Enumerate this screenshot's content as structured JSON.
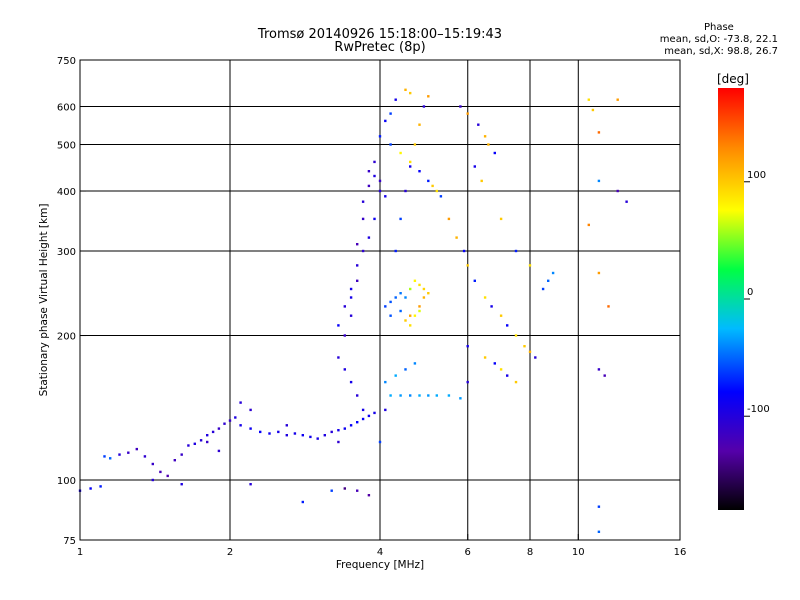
{
  "header": {
    "title_line1": "Tromsø 20140926 15:18:00–15:19:43",
    "title_line2": "RwPretec (8p)"
  },
  "phase_info": {
    "heading": "Phase",
    "line_o": "mean, sd,O: -73.8, 22.1",
    "line_x": "mean, sd,X:  98.8, 26.7"
  },
  "chart_data": {
    "type": "scatter",
    "xlabel": "Frequency [MHz]",
    "ylabel": "Stationary phase Virtual Height [km]",
    "xscale": "log",
    "yscale": "log",
    "xlim": [
      1,
      16
    ],
    "ylim": [
      75,
      750
    ],
    "x_ticks": [
      1,
      2,
      4,
      6,
      8,
      10,
      16
    ],
    "x_grid": [
      2,
      4,
      6,
      8,
      10
    ],
    "y_ticks": [
      75,
      100,
      200,
      300,
      400,
      500,
      600,
      750
    ],
    "y_grid": [
      100,
      200,
      300,
      400,
      500,
      600
    ],
    "grid": true,
    "colorbar": {
      "label": "[deg]",
      "range": [
        -180,
        180
      ],
      "ticks": [
        -100,
        0,
        100
      ],
      "colors": [
        "#000000",
        "#5500aa",
        "#0000ff",
        "#00bbff",
        "#00ff44",
        "#ffff00",
        "#ff8800",
        "#ff0000"
      ]
    },
    "series": [
      {
        "points": [
          [
            1.0,
            95,
            -90
          ],
          [
            1.05,
            96,
            -80
          ],
          [
            1.1,
            97,
            -70
          ],
          [
            1.12,
            112,
            -60
          ],
          [
            1.15,
            111,
            -50
          ],
          [
            1.2,
            113,
            -100
          ],
          [
            1.25,
            114,
            -110
          ],
          [
            1.3,
            116,
            -115
          ],
          [
            1.35,
            112,
            -105
          ],
          [
            1.4,
            108,
            -110
          ],
          [
            1.45,
            104,
            -120
          ],
          [
            1.5,
            102,
            -125
          ],
          [
            1.55,
            110,
            -115
          ],
          [
            1.6,
            113,
            -110
          ],
          [
            1.65,
            118,
            -100
          ],
          [
            1.7,
            119,
            -95
          ],
          [
            1.75,
            121,
            -100
          ],
          [
            1.8,
            124,
            -95
          ],
          [
            1.85,
            126,
            -100
          ],
          [
            1.9,
            128,
            -110
          ],
          [
            1.95,
            131,
            -105
          ],
          [
            2.0,
            133,
            -110
          ],
          [
            2.05,
            135,
            -95
          ],
          [
            2.1,
            130,
            -90
          ],
          [
            2.2,
            128,
            -85
          ],
          [
            2.3,
            126,
            -80
          ],
          [
            2.4,
            125,
            -85
          ],
          [
            2.5,
            126,
            -90
          ],
          [
            2.6,
            124,
            -95
          ],
          [
            2.7,
            125,
            -90
          ],
          [
            2.8,
            124,
            -85
          ],
          [
            2.9,
            123,
            -88
          ],
          [
            3.0,
            122,
            -92
          ],
          [
            3.1,
            124,
            -95
          ],
          [
            3.2,
            126,
            -100
          ],
          [
            3.3,
            127,
            -90
          ],
          [
            3.4,
            128,
            -85
          ],
          [
            3.5,
            130,
            -80
          ],
          [
            3.6,
            132,
            -78
          ],
          [
            3.7,
            134,
            -80
          ],
          [
            3.8,
            136,
            -85
          ],
          [
            3.9,
            138,
            -90
          ],
          [
            4.0,
            120,
            -60
          ],
          [
            4.1,
            140,
            -95
          ],
          [
            2.1,
            145,
            -100
          ],
          [
            2.2,
            140,
            -105
          ],
          [
            1.8,
            120,
            -110
          ],
          [
            1.9,
            115,
            -105
          ],
          [
            2.6,
            130,
            -100
          ],
          [
            3.3,
            120,
            -105
          ],
          [
            3.6,
            95,
            -120
          ],
          [
            3.8,
            93,
            -130
          ],
          [
            3.4,
            96,
            -140
          ],
          [
            2.2,
            98,
            -100
          ],
          [
            3.2,
            95,
            -60
          ],
          [
            2.8,
            90,
            -70
          ],
          [
            1.4,
            100,
            -100
          ],
          [
            1.6,
            98,
            -95
          ],
          [
            3.4,
            200,
            -110
          ],
          [
            3.5,
            220,
            -100
          ],
          [
            3.5,
            250,
            -90
          ],
          [
            3.6,
            280,
            -100
          ],
          [
            3.6,
            310,
            -120
          ],
          [
            3.7,
            350,
            -110
          ],
          [
            3.7,
            380,
            -100
          ],
          [
            3.8,
            410,
            -115
          ],
          [
            3.8,
            440,
            -110
          ],
          [
            3.9,
            460,
            -105
          ],
          [
            3.9,
            430,
            -95
          ],
          [
            4.0,
            420,
            -110
          ],
          [
            4.0,
            400,
            -100
          ],
          [
            4.1,
            390,
            -90
          ],
          [
            3.9,
            350,
            -85
          ],
          [
            3.8,
            320,
            -95
          ],
          [
            3.7,
            300,
            -105
          ],
          [
            3.6,
            260,
            -115
          ],
          [
            3.5,
            240,
            -90
          ],
          [
            3.4,
            230,
            -100
          ],
          [
            3.3,
            210,
            -80
          ],
          [
            3.3,
            180,
            -100
          ],
          [
            3.4,
            170,
            -95
          ],
          [
            3.5,
            160,
            -90
          ],
          [
            3.6,
            150,
            -100
          ],
          [
            3.7,
            140,
            -90
          ],
          [
            4.1,
            230,
            -60
          ],
          [
            4.2,
            235,
            -55
          ],
          [
            4.3,
            240,
            -50
          ],
          [
            4.4,
            245,
            -45
          ],
          [
            4.5,
            240,
            -40
          ],
          [
            4.6,
            250,
            60
          ],
          [
            4.7,
            260,
            80
          ],
          [
            4.8,
            255,
            90
          ],
          [
            4.9,
            250,
            95
          ],
          [
            5.0,
            245,
            100
          ],
          [
            4.9,
            240,
            110
          ],
          [
            4.8,
            230,
            120
          ],
          [
            4.6,
            220,
            115
          ],
          [
            4.5,
            215,
            100
          ],
          [
            4.6,
            210,
            90
          ],
          [
            4.7,
            220,
            80
          ],
          [
            4.8,
            225,
            70
          ],
          [
            4.4,
            225,
            -50
          ],
          [
            4.2,
            220,
            -55
          ],
          [
            4.2,
            150,
            -30
          ],
          [
            4.4,
            150,
            -35
          ],
          [
            4.6,
            150,
            -40
          ],
          [
            4.8,
            150,
            -30
          ],
          [
            5.0,
            150,
            -35
          ],
          [
            5.2,
            150,
            -30
          ],
          [
            5.5,
            150,
            -30
          ],
          [
            5.8,
            148,
            -35
          ],
          [
            4.1,
            160,
            -40
          ],
          [
            4.3,
            165,
            -30
          ],
          [
            4.5,
            170,
            -50
          ],
          [
            4.7,
            175,
            -40
          ],
          [
            4.3,
            300,
            -70
          ],
          [
            4.4,
            350,
            -60
          ],
          [
            4.5,
            400,
            -100
          ],
          [
            4.6,
            450,
            -90
          ],
          [
            4.7,
            500,
            100
          ],
          [
            4.8,
            550,
            110
          ],
          [
            4.9,
            600,
            -100
          ],
          [
            5.0,
            630,
            120
          ],
          [
            4.5,
            650,
            110
          ],
          [
            4.6,
            640,
            100
          ],
          [
            4.3,
            620,
            -90
          ],
          [
            4.2,
            580,
            -60
          ],
          [
            4.1,
            560,
            -80
          ],
          [
            4.0,
            520,
            -70
          ],
          [
            4.2,
            500,
            -60
          ],
          [
            4.4,
            480,
            80
          ],
          [
            4.6,
            460,
            90
          ],
          [
            4.8,
            440,
            -80
          ],
          [
            5.0,
            420,
            -70
          ],
          [
            5.1,
            410,
            100
          ],
          [
            5.2,
            400,
            90
          ],
          [
            5.3,
            390,
            -60
          ],
          [
            5.5,
            350,
            120
          ],
          [
            5.7,
            320,
            110
          ],
          [
            5.9,
            300,
            -80
          ],
          [
            6.0,
            280,
            100
          ],
          [
            6.2,
            260,
            -70
          ],
          [
            6.5,
            240,
            90
          ],
          [
            6.7,
            230,
            -90
          ],
          [
            7.0,
            220,
            100
          ],
          [
            7.2,
            210,
            -80
          ],
          [
            7.5,
            200,
            90
          ],
          [
            7.8,
            190,
            100
          ],
          [
            8.0,
            185,
            110
          ],
          [
            8.2,
            180,
            -100
          ],
          [
            8.5,
            250,
            -60
          ],
          [
            8.7,
            260,
            -50
          ],
          [
            8.9,
            270,
            -40
          ],
          [
            6.0,
            190,
            -90
          ],
          [
            6.5,
            180,
            100
          ],
          [
            6.8,
            175,
            -80
          ],
          [
            7.0,
            170,
            90
          ],
          [
            7.2,
            165,
            -90
          ],
          [
            7.5,
            160,
            100
          ],
          [
            6.0,
            160,
            -100
          ],
          [
            6.2,
            450,
            -90
          ],
          [
            6.4,
            420,
            100
          ],
          [
            6.6,
            500,
            110
          ],
          [
            6.8,
            480,
            -80
          ],
          [
            7.0,
            350,
            100
          ],
          [
            7.5,
            300,
            -70
          ],
          [
            8.0,
            280,
            90
          ],
          [
            5.8,
            600,
            -110
          ],
          [
            6.0,
            580,
            120
          ],
          [
            6.3,
            550,
            -100
          ],
          [
            6.5,
            520,
            110
          ],
          [
            10.5,
            620,
            90
          ],
          [
            10.7,
            590,
            100
          ],
          [
            11.0,
            530,
            140
          ],
          [
            11.0,
            420,
            -40
          ],
          [
            12.0,
            400,
            -120
          ],
          [
            12.5,
            380,
            -100
          ],
          [
            10.5,
            340,
            130
          ],
          [
            11.0,
            270,
            120
          ],
          [
            11.5,
            230,
            140
          ],
          [
            11.0,
            170,
            -110
          ],
          [
            11.3,
            165,
            -120
          ],
          [
            11.0,
            88,
            -60
          ],
          [
            11.0,
            78,
            -50
          ],
          [
            12.0,
            620,
            120
          ]
        ]
      }
    ]
  }
}
